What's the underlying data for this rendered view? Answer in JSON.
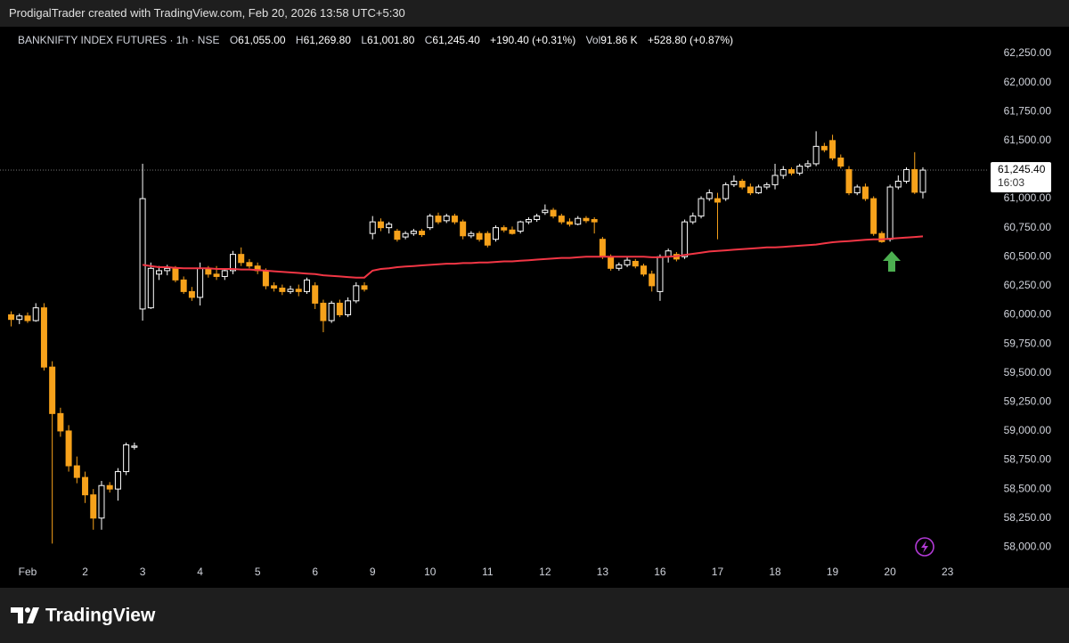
{
  "header": "ProdigalTrader created with TradingView.com, Feb 20, 2026 13:58 UTC+5:30",
  "footer": "TradingView",
  "chart_data": {
    "type": "candlestick",
    "legend": {
      "symbol": "BANKNIFTY INDEX FUTURES · 1h · NSE",
      "open_key": "O",
      "open": "61,055.00",
      "high_key": "H",
      "high": "61,269.80",
      "low_key": "L",
      "low": "61,001.80",
      "close_key": "C",
      "close": "61,245.40",
      "change": "+190.40 (+0.31%)",
      "vol_key": "Vol",
      "vol": "91.86 K",
      "vol_change": "+528.80 (+0.87%)"
    },
    "up_color": "#ffffff",
    "down_color": "#f7a21b",
    "ylim": [
      57880,
      62480
    ],
    "yticks": [
      {
        "value": 58000,
        "label": "58,000.00"
      },
      {
        "value": 58250,
        "label": "58,250.00"
      },
      {
        "value": 58500,
        "label": "58,500.00"
      },
      {
        "value": 58750,
        "label": "58,750.00"
      },
      {
        "value": 59000,
        "label": "59,000.00"
      },
      {
        "value": 59250,
        "label": "59,250.00"
      },
      {
        "value": 59500,
        "label": "59,500.00"
      },
      {
        "value": 59750,
        "label": "59,750.00"
      },
      {
        "value": 60000,
        "label": "60,000.00"
      },
      {
        "value": 60250,
        "label": "60,250.00"
      },
      {
        "value": 60500,
        "label": "60,500.00"
      },
      {
        "value": 60750,
        "label": "60,750.00"
      },
      {
        "value": 61000,
        "label": "61,000.00"
      },
      {
        "value": 61250,
        "label": "61,250.00"
      },
      {
        "value": 61500,
        "label": "61,500.00"
      },
      {
        "value": 61750,
        "label": "61,750.00"
      },
      {
        "value": 62000,
        "label": "62,000.00"
      },
      {
        "value": 62250,
        "label": "62,250.00"
      }
    ],
    "grid": false,
    "xlabels": [
      "Feb",
      "2",
      "3",
      "4",
      "5",
      "6",
      "9",
      "10",
      "11",
      "12",
      "13",
      "16",
      "17",
      "18",
      "19",
      "20",
      "23"
    ],
    "last_price_label": "61,245.40",
    "countdown": "16:03",
    "ohlc": [
      [
        60000,
        60030,
        59900,
        59960
      ],
      [
        59960,
        60010,
        59920,
        59990
      ],
      [
        59990,
        60020,
        59930,
        59950
      ],
      [
        59950,
        60100,
        59940,
        60060
      ],
      [
        60060,
        60100,
        59520,
        59550
      ],
      [
        59550,
        59600,
        58030,
        59150
      ],
      [
        59150,
        59200,
        58950,
        59000
      ],
      [
        59000,
        59050,
        58650,
        58700
      ],
      [
        58700,
        58780,
        58550,
        58600
      ],
      [
        58600,
        58650,
        58380,
        58450
      ],
      [
        58450,
        58500,
        58150,
        58250
      ],
      [
        58250,
        58570,
        58150,
        58530
      ],
      [
        58530,
        58560,
        58470,
        58500
      ],
      [
        58500,
        58680,
        58400,
        58650
      ],
      [
        58650,
        58900,
        58620,
        58880
      ],
      [
        58860,
        58900,
        58840,
        58870
      ],
      [
        60050,
        61300,
        59950,
        61000
      ],
      [
        60060,
        60450,
        60050,
        60400
      ],
      [
        60350,
        60420,
        60300,
        60380
      ],
      [
        60380,
        60430,
        60340,
        60400
      ],
      [
        60400,
        60420,
        60280,
        60300
      ],
      [
        60300,
        60330,
        60180,
        60200
      ],
      [
        60200,
        60240,
        60120,
        60150
      ],
      [
        60150,
        60450,
        60080,
        60400
      ],
      [
        60400,
        60420,
        60320,
        60350
      ],
      [
        60350,
        60420,
        60300,
        60330
      ],
      [
        60330,
        60400,
        60300,
        60380
      ],
      [
        60380,
        60550,
        60350,
        60520
      ],
      [
        60520,
        60580,
        60420,
        60450
      ],
      [
        60450,
        60480,
        60400,
        60420
      ],
      [
        60420,
        60450,
        60350,
        60380
      ],
      [
        60380,
        60400,
        60220,
        60250
      ],
      [
        60250,
        60280,
        60200,
        60230
      ],
      [
        60230,
        60260,
        60170,
        60200
      ],
      [
        60200,
        60250,
        60180,
        60220
      ],
      [
        60220,
        60260,
        60160,
        60200
      ],
      [
        60200,
        60320,
        60180,
        60300
      ],
      [
        60250,
        60280,
        60050,
        60100
      ],
      [
        60100,
        60130,
        59850,
        59950
      ],
      [
        59950,
        60120,
        59930,
        60100
      ],
      [
        60100,
        60130,
        59980,
        60000
      ],
      [
        60000,
        60150,
        59980,
        60120
      ],
      [
        60120,
        60280,
        60100,
        60250
      ],
      [
        60250,
        60280,
        60200,
        60220
      ],
      [
        60700,
        60850,
        60650,
        60800
      ],
      [
        60800,
        60830,
        60720,
        60750
      ],
      [
        60750,
        60800,
        60700,
        60780
      ],
      [
        60720,
        60740,
        60630,
        60650
      ],
      [
        60670,
        60720,
        60650,
        60700
      ],
      [
        60700,
        60740,
        60680,
        60720
      ],
      [
        60720,
        60740,
        60670,
        60690
      ],
      [
        60750,
        60870,
        60730,
        60850
      ],
      [
        60850,
        60880,
        60780,
        60800
      ],
      [
        60810,
        60870,
        60790,
        60850
      ],
      [
        60850,
        60870,
        60780,
        60800
      ],
      [
        60800,
        60820,
        60650,
        60680
      ],
      [
        60680,
        60720,
        60660,
        60700
      ],
      [
        60700,
        60720,
        60630,
        60650
      ],
      [
        60700,
        60720,
        60580,
        60600
      ],
      [
        60650,
        60770,
        60630,
        60750
      ],
      [
        60750,
        60770,
        60710,
        60730
      ],
      [
        60730,
        60760,
        60690,
        60700
      ],
      [
        60720,
        60810,
        60700,
        60800
      ],
      [
        60800,
        60840,
        60780,
        60820
      ],
      [
        60820,
        60870,
        60800,
        60850
      ],
      [
        60880,
        60950,
        60860,
        60900
      ],
      [
        60900,
        60920,
        60830,
        60850
      ],
      [
        60850,
        60870,
        60780,
        60800
      ],
      [
        60800,
        60830,
        60760,
        60780
      ],
      [
        60780,
        60850,
        60770,
        60830
      ],
      [
        60830,
        60850,
        60790,
        60810
      ],
      [
        60820,
        60840,
        60700,
        60800
      ],
      [
        60650,
        60670,
        60480,
        60500
      ],
      [
        60500,
        60520,
        60380,
        60400
      ],
      [
        60400,
        60450,
        60380,
        60430
      ],
      [
        60430,
        60500,
        60410,
        60470
      ],
      [
        60460,
        60480,
        60400,
        60420
      ],
      [
        60420,
        60440,
        60330,
        60350
      ],
      [
        60350,
        60380,
        60200,
        60250
      ],
      [
        60200,
        60520,
        60120,
        60500
      ],
      [
        60500,
        60570,
        60450,
        60550
      ],
      [
        60520,
        60540,
        60460,
        60480
      ],
      [
        60500,
        60820,
        60480,
        60800
      ],
      [
        60800,
        60880,
        60780,
        60850
      ],
      [
        60850,
        61020,
        60830,
        61000
      ],
      [
        61000,
        61080,
        60980,
        61050
      ],
      [
        61000,
        61050,
        60650,
        60970
      ],
      [
        61000,
        61140,
        60980,
        61120
      ],
      [
        61120,
        61200,
        61100,
        61150
      ],
      [
        61150,
        61170,
        61080,
        61100
      ],
      [
        61100,
        61130,
        61030,
        61050
      ],
      [
        61050,
        61120,
        61040,
        61100
      ],
      [
        61100,
        61140,
        61080,
        61120
      ],
      [
        61120,
        61300,
        61080,
        61200
      ],
      [
        61200,
        61280,
        61170,
        61250
      ],
      [
        61250,
        61270,
        61200,
        61220
      ],
      [
        61220,
        61300,
        61200,
        61280
      ],
      [
        61280,
        61330,
        61260,
        61300
      ],
      [
        61300,
        61580,
        61280,
        61450
      ],
      [
        61450,
        61480,
        61400,
        61420
      ],
      [
        61500,
        61550,
        61330,
        61350
      ],
      [
        61350,
        61380,
        61260,
        61280
      ],
      [
        61250,
        61280,
        61030,
        61050
      ],
      [
        61050,
        61120,
        61030,
        61100
      ],
      [
        61100,
        61130,
        60980,
        61000
      ],
      [
        61000,
        61020,
        60680,
        60700
      ],
      [
        60700,
        60720,
        60620,
        60630
      ],
      [
        60650,
        61120,
        60630,
        61100
      ],
      [
        61100,
        61200,
        61080,
        61150
      ],
      [
        61150,
        61270,
        61130,
        61250
      ],
      [
        61250,
        61400,
        61040,
        61055
      ],
      [
        61055,
        61269.8,
        61001.8,
        61245.4
      ]
    ],
    "ma": {
      "color": "#f23645",
      "values": [
        null,
        null,
        null,
        null,
        null,
        null,
        null,
        null,
        null,
        null,
        null,
        null,
        null,
        null,
        null,
        null,
        60430,
        60420,
        60410,
        60410,
        60405,
        60400,
        60400,
        60400,
        60400,
        60395,
        60395,
        60395,
        60390,
        60390,
        60385,
        60380,
        60375,
        60370,
        60365,
        60360,
        60355,
        60350,
        60340,
        60335,
        60330,
        60325,
        60320,
        60320,
        60380,
        60395,
        60400,
        60410,
        60415,
        60420,
        60425,
        60430,
        60435,
        60440,
        60440,
        60445,
        60445,
        60450,
        60450,
        60455,
        60460,
        60460,
        60465,
        60470,
        60475,
        60480,
        60485,
        60490,
        60490,
        60495,
        60500,
        60500,
        60500,
        60500,
        60500,
        60500,
        60500,
        60500,
        60495,
        60495,
        60500,
        60505,
        60515,
        60525,
        60535,
        60545,
        60550,
        60555,
        60560,
        60565,
        60570,
        60575,
        60580,
        60580,
        60585,
        60590,
        60595,
        60600,
        60605,
        60615,
        60625,
        60630,
        60635,
        60640,
        60645,
        60650,
        60650,
        60655,
        60660,
        60665,
        60670,
        60675
      ]
    }
  }
}
